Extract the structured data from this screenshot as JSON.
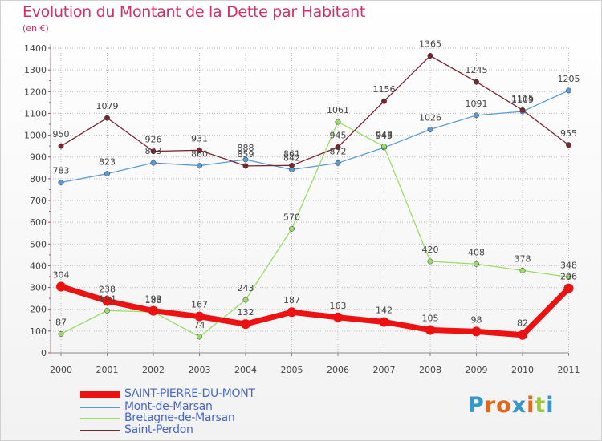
{
  "header": {
    "title": "Evolution du Montant de la Dette par Habitant",
    "unit": "(en €)"
  },
  "logo": {
    "text": "Proxiti",
    "colors": [
      "#3399cc",
      "#e2661b",
      "#e2661b",
      "#3399cc",
      "#e2661b",
      "#99cc33",
      "#3399cc"
    ]
  },
  "chart_data": {
    "type": "line",
    "title": "Evolution du Montant de la Dette par Habitant",
    "ylabel": "(en €)",
    "xlabel": "",
    "x": [
      "2000",
      "2001",
      "2002",
      "2003",
      "2004",
      "2005",
      "2006",
      "2007",
      "2008",
      "2009",
      "2010",
      "2011"
    ],
    "ylim": [
      0,
      1400
    ],
    "yticks": [
      "0",
      "100",
      "200",
      "300",
      "400",
      "500",
      "600",
      "700",
      "800",
      "900",
      "1000",
      "1100",
      "1200",
      "1300",
      "1400"
    ],
    "grid": true,
    "legend_position": "bottom-left",
    "series": [
      {
        "name": "SAINT-PIERRE-DU-MONT",
        "color": "#ee1111",
        "values": [
          304,
          238,
          193,
          167,
          132,
          187,
          163,
          142,
          105,
          98,
          82,
          296
        ],
        "labels": [
          "304",
          "238",
          "193",
          "167",
          "132",
          "187",
          "163",
          "142",
          "105",
          "98",
          "82",
          "296"
        ]
      },
      {
        "name": "Mont-de-Marsan",
        "color": "#5b9bd5",
        "values": [
          783,
          823,
          873,
          860,
          888,
          842,
          872,
          943,
          1026,
          1091,
          1109,
          1205
        ],
        "labels": [
          "783",
          "823",
          "873",
          "860",
          "888",
          "842",
          "872",
          "943",
          "1026",
          "1091",
          "1109",
          "1205"
        ]
      },
      {
        "name": "Bretagne-de-Marsan",
        "color": "#99dd66",
        "values": [
          87,
          194,
          188,
          74,
          243,
          570,
          1061,
          948,
          420,
          408,
          378,
          348
        ],
        "labels": [
          "87",
          "194",
          "188",
          "74",
          "243",
          "570",
          "1061",
          "948",
          "420",
          "408",
          "378",
          "348"
        ]
      },
      {
        "name": "Saint-Perdon",
        "color": "#7a2630",
        "values": [
          950,
          1079,
          926,
          931,
          859,
          861,
          945,
          1156,
          1365,
          1245,
          1115,
          955
        ],
        "labels": [
          "950",
          "1079",
          "926",
          "931",
          "859",
          "861",
          "945",
          "1156",
          "1365",
          "1245",
          "1115",
          "955"
        ]
      }
    ]
  }
}
